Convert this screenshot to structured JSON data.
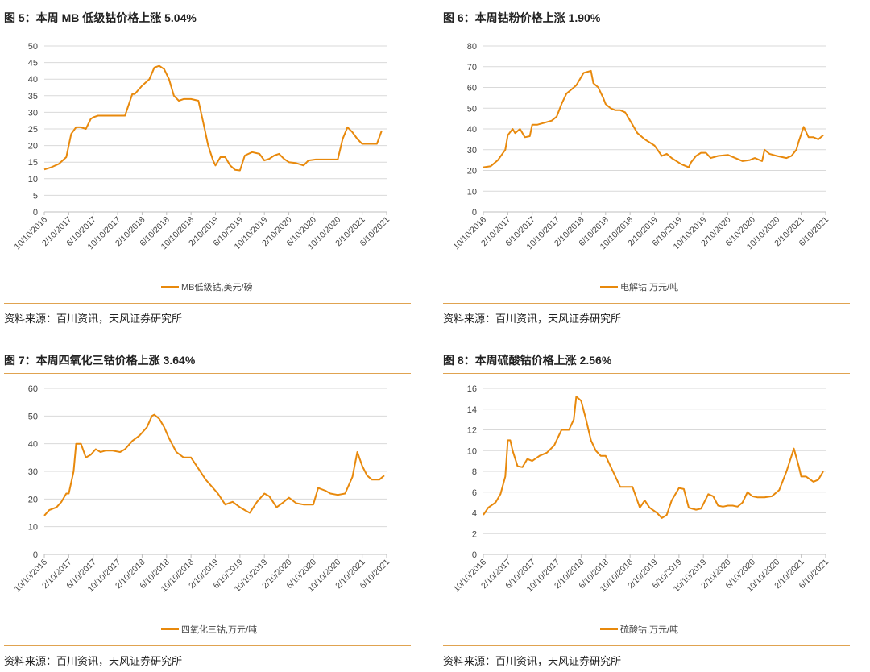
{
  "line_color": "#e8890c",
  "chart_data": [
    {
      "type": "line",
      "title": "图 5：本周 MB 低级钴价格上涨 5.04%",
      "source": "资料来源：百川资讯，天风证券研究所",
      "ylim": [
        0,
        50
      ],
      "yticks": [
        "0",
        "5",
        "10",
        "15",
        "20",
        "25",
        "30",
        "35",
        "40",
        "45",
        "50"
      ],
      "xlim": [
        0,
        14
      ],
      "xticks": [
        "10/10/2016",
        "2/10/2017",
        "6/10/2017",
        "10/10/2017",
        "2/10/2018",
        "6/10/2018",
        "10/10/2018",
        "2/10/2019",
        "6/10/2019",
        "10/10/2019",
        "2/10/2020",
        "6/10/2020",
        "10/10/2020",
        "2/10/2021",
        "6/10/2021"
      ],
      "grid": true,
      "legend_position": "bottom",
      "series": [
        {
          "name": "MB低级钴,美元/磅",
          "x": [
            0,
            0.3,
            0.6,
            0.9,
            1.1,
            1.3,
            1.5,
            1.7,
            1.9,
            2.0,
            2.2,
            2.4,
            2.6,
            2.9,
            3.3,
            3.6,
            3.7,
            4.0,
            4.3,
            4.5,
            4.7,
            4.9,
            5.1,
            5.3,
            5.5,
            5.7,
            6.0,
            6.3,
            6.5,
            6.7,
            6.9,
            7.0,
            7.2,
            7.4,
            7.6,
            7.8,
            8.0,
            8.2,
            8.5,
            8.8,
            9.0,
            9.2,
            9.4,
            9.6,
            9.8,
            10.0,
            10.3,
            10.6,
            10.8,
            11.1,
            11.4,
            11.7,
            12.0,
            12.2,
            12.4,
            12.6,
            12.8,
            13.0,
            13.3,
            13.6,
            13.8
          ],
          "y": [
            12.8,
            13.5,
            14.5,
            16.5,
            23.5,
            25.5,
            25.5,
            25,
            28,
            28.5,
            29,
            29,
            29,
            29,
            29,
            35.5,
            35.5,
            38,
            40,
            43.5,
            44,
            43,
            40,
            35,
            33.5,
            34,
            34,
            33.5,
            27,
            20,
            15.5,
            14,
            16.5,
            16.5,
            14,
            12.7,
            12.5,
            17,
            18,
            17.5,
            15.5,
            16,
            17,
            17.5,
            16,
            15,
            14.7,
            14,
            15.5,
            15.8,
            15.8,
            15.8,
            15.8,
            22,
            25.5,
            24,
            22,
            20.5,
            20.5,
            20.5,
            24.5
          ]
        }
      ]
    },
    {
      "type": "line",
      "title": "图 6：本周钴粉价格上涨 1.90%",
      "source": "资料来源：百川资讯，天风证券研究所",
      "ylim": [
        0,
        80
      ],
      "yticks": [
        "0",
        "10",
        "20",
        "30",
        "40",
        "50",
        "60",
        "70",
        "80"
      ],
      "xlim": [
        0,
        14
      ],
      "xticks": [
        "10/10/2016",
        "2/10/2017",
        "6/10/2017",
        "10/10/2017",
        "2/10/2018",
        "6/10/2018",
        "10/10/2018",
        "2/10/2019",
        "6/10/2019",
        "10/10/2019",
        "2/10/2020",
        "6/10/2020",
        "10/10/2020",
        "2/10/2021",
        "6/10/2021"
      ],
      "grid": true,
      "legend_position": "bottom",
      "series": [
        {
          "name": "电解钴,万元/吨",
          "x": [
            0,
            0.3,
            0.6,
            0.9,
            1.0,
            1.2,
            1.3,
            1.5,
            1.7,
            1.9,
            2.0,
            2.2,
            2.5,
            2.8,
            3.0,
            3.2,
            3.4,
            3.6,
            3.8,
            4.1,
            4.4,
            4.5,
            4.7,
            4.9,
            5.0,
            5.2,
            5.4,
            5.6,
            5.8,
            6.1,
            6.3,
            6.6,
            7.0,
            7.3,
            7.5,
            7.7,
            8.1,
            8.4,
            8.5,
            8.7,
            8.9,
            9.1,
            9.3,
            9.6,
            10.0,
            10.3,
            10.6,
            10.9,
            11.1,
            11.4,
            11.5,
            11.7,
            12.0,
            12.4,
            12.6,
            12.8,
            12.9,
            13.1,
            13.3,
            13.5,
            13.7,
            13.9
          ],
          "y": [
            21.5,
            22,
            25,
            30,
            37,
            40,
            38,
            40,
            36,
            36.5,
            42,
            42,
            43,
            44,
            46,
            52,
            57,
            59,
            61,
            67,
            68,
            62,
            60,
            55,
            52,
            50,
            49,
            49,
            48,
            42,
            38,
            35,
            32,
            27,
            28,
            26,
            23,
            21.5,
            24,
            27,
            28.5,
            28.5,
            26,
            27,
            27.5,
            26,
            24.5,
            25,
            26,
            24.5,
            30,
            28,
            27,
            26,
            27,
            30,
            34,
            41,
            36,
            36,
            35,
            37
          ]
        }
      ]
    },
    {
      "type": "line",
      "title": "图 7：本周四氧化三钴价格上涨 3.64%",
      "source": "资料来源：百川资讯，天风证券研究所",
      "ylim": [
        0,
        60
      ],
      "yticks": [
        "0",
        "10",
        "20",
        "30",
        "40",
        "50",
        "60"
      ],
      "xlim": [
        0,
        14
      ],
      "xticks": [
        "10/10/2016",
        "2/10/2017",
        "6/10/2017",
        "10/10/2017",
        "2/10/2018",
        "6/10/2018",
        "10/10/2018",
        "2/10/2019",
        "6/10/2019",
        "10/10/2019",
        "2/10/2020",
        "6/10/2020",
        "10/10/2020",
        "2/10/2021",
        "6/10/2021"
      ],
      "grid": true,
      "legend_position": "bottom",
      "series": [
        {
          "name": "四氧化三钴,万元/吨",
          "x": [
            0,
            0.2,
            0.5,
            0.7,
            0.9,
            1.0,
            1.2,
            1.3,
            1.5,
            1.7,
            1.9,
            2.1,
            2.3,
            2.5,
            2.8,
            3.1,
            3.3,
            3.6,
            3.9,
            4.2,
            4.4,
            4.5,
            4.7,
            4.9,
            5.1,
            5.4,
            5.7,
            6.0,
            6.3,
            6.6,
            6.9,
            7.1,
            7.4,
            7.7,
            8.0,
            8.2,
            8.4,
            8.7,
            9.0,
            9.2,
            9.5,
            9.8,
            10.0,
            10.3,
            10.6,
            10.8,
            11.0,
            11.2,
            11.5,
            11.7,
            12.0,
            12.3,
            12.6,
            12.8,
            13.0,
            13.2,
            13.4,
            13.7,
            13.9
          ],
          "y": [
            14,
            16,
            17,
            19,
            22,
            22,
            30,
            40,
            40,
            35,
            36,
            38,
            37,
            37.5,
            37.5,
            37,
            38,
            41,
            43,
            46,
            50,
            50.5,
            49,
            46,
            42,
            37,
            35,
            35,
            31,
            27,
            24,
            22,
            18,
            19,
            17,
            16,
            15,
            19,
            22,
            21,
            17,
            19,
            20.5,
            18.5,
            18,
            18,
            18,
            24,
            23,
            22,
            21.5,
            22,
            28,
            37,
            32,
            28.5,
            27,
            27,
            28.5
          ]
        }
      ]
    },
    {
      "type": "line",
      "title": "图 8：本周硫酸钴价格上涨 2.56%",
      "source": "资料来源：百川资讯，天风证券研究所",
      "ylim": [
        0,
        16
      ],
      "yticks": [
        "0",
        "2",
        "4",
        "6",
        "8",
        "10",
        "12",
        "14",
        "16"
      ],
      "xlim": [
        0,
        14
      ],
      "xticks": [
        "10/10/2016",
        "2/10/2017",
        "6/10/2017",
        "10/10/2017",
        "2/10/2018",
        "6/10/2018",
        "10/10/2018",
        "2/10/2019",
        "6/10/2019",
        "10/10/2019",
        "2/10/2020",
        "6/10/2020",
        "10/10/2020",
        "2/10/2021",
        "6/10/2021"
      ],
      "grid": true,
      "legend_position": "bottom",
      "series": [
        {
          "name": "硫酸钴,万元/吨",
          "x": [
            0,
            0.2,
            0.5,
            0.7,
            0.9,
            1.0,
            1.1,
            1.2,
            1.4,
            1.6,
            1.8,
            2.0,
            2.3,
            2.6,
            2.9,
            3.2,
            3.5,
            3.7,
            3.8,
            4.0,
            4.2,
            4.4,
            4.6,
            4.8,
            5.0,
            5.3,
            5.6,
            5.9,
            6.1,
            6.4,
            6.6,
            6.8,
            7.1,
            7.3,
            7.5,
            7.7,
            8.0,
            8.2,
            8.4,
            8.7,
            8.9,
            9.2,
            9.4,
            9.6,
            9.8,
            10.0,
            10.2,
            10.4,
            10.6,
            10.8,
            11.0,
            11.2,
            11.5,
            11.8,
            12.1,
            12.4,
            12.7,
            12.9,
            13.0,
            13.2,
            13.5,
            13.7,
            13.9
          ],
          "y": [
            3.8,
            4.5,
            5.0,
            5.8,
            7.5,
            11,
            11,
            10,
            8.5,
            8.4,
            9.2,
            9.0,
            9.5,
            9.8,
            10.5,
            12,
            12,
            13,
            15.2,
            14.8,
            13,
            11,
            10,
            9.5,
            9.5,
            8,
            6.5,
            6.5,
            6.5,
            4.5,
            5.2,
            4.5,
            4.0,
            3.5,
            3.8,
            5.2,
            6.4,
            6.3,
            4.5,
            4.3,
            4.4,
            5.8,
            5.6,
            4.7,
            4.6,
            4.7,
            4.7,
            4.6,
            5.0,
            6.0,
            5.6,
            5.5,
            5.5,
            5.6,
            6.2,
            8.0,
            10.2,
            8.5,
            7.5,
            7.5,
            7.0,
            7.2,
            8.0
          ]
        }
      ]
    }
  ]
}
